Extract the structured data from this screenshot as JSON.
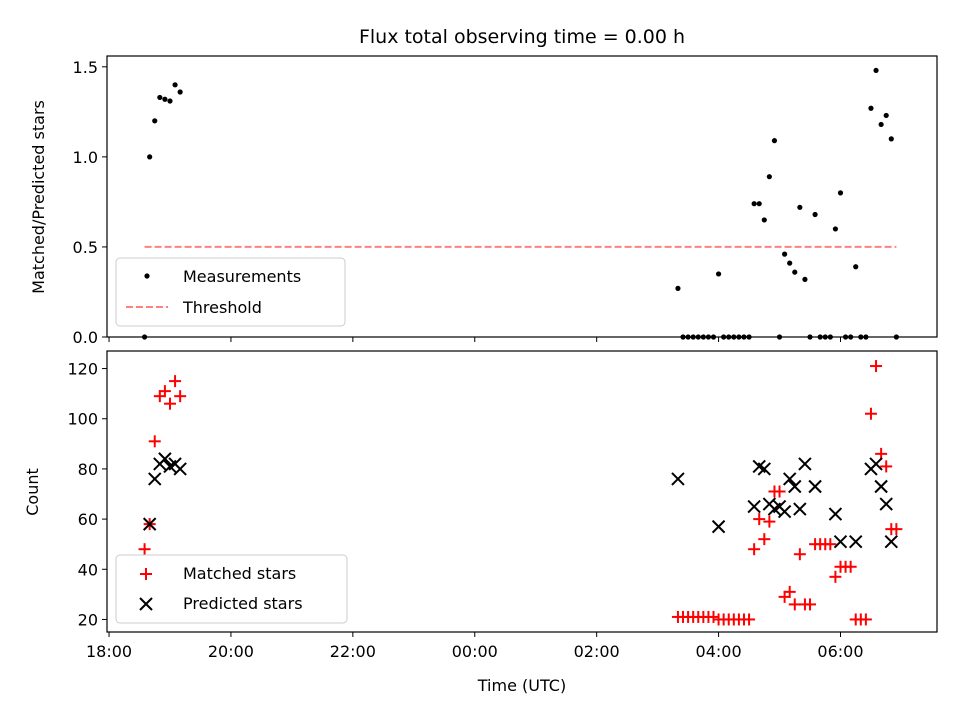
{
  "figure": {
    "title": "Flux total observing time = 0.00 h",
    "xlabel": "Time (UTC)",
    "x_ticks": [
      "18:00",
      "20:00",
      "22:00",
      "00:00",
      "02:00",
      "04:00",
      "06:00"
    ]
  },
  "chart_data": [
    {
      "type": "scatter",
      "ylabel": "Matched/Predicted stars",
      "xlim": [
        "2023-01-01T17:58:00",
        "2023-01-02T07:35:00"
      ],
      "ylim": [
        0,
        1.56
      ],
      "y_ticks": [
        "0.0",
        "0.5",
        "1.0",
        "1.5"
      ],
      "legend": {
        "placement": "lower-left"
      },
      "series": [
        {
          "name": "Measurements",
          "marker": "dot",
          "color": "#000000",
          "points": [
            [
              "2023-01-01T18:35:00",
              0.0
            ],
            [
              "2023-01-01T18:40:00",
              1.0
            ],
            [
              "2023-01-01T18:45:00",
              1.2
            ],
            [
              "2023-01-01T18:50:00",
              1.33
            ],
            [
              "2023-01-01T18:55:00",
              1.32
            ],
            [
              "2023-01-01T19:00:00",
              1.31
            ],
            [
              "2023-01-01T19:05:00",
              1.4
            ],
            [
              "2023-01-01T19:10:00",
              1.36
            ],
            [
              "2023-01-02T03:20:00",
              0.27
            ],
            [
              "2023-01-02T03:25:00",
              0.0
            ],
            [
              "2023-01-02T03:30:00",
              0.0
            ],
            [
              "2023-01-02T03:35:00",
              0.0
            ],
            [
              "2023-01-02T03:40:00",
              0.0
            ],
            [
              "2023-01-02T03:45:00",
              0.0
            ],
            [
              "2023-01-02T03:50:00",
              0.0
            ],
            [
              "2023-01-02T03:55:00",
              0.0
            ],
            [
              "2023-01-02T04:00:00",
              0.35
            ],
            [
              "2023-01-02T04:05:00",
              0.0
            ],
            [
              "2023-01-02T04:10:00",
              0.0
            ],
            [
              "2023-01-02T04:15:00",
              0.0
            ],
            [
              "2023-01-02T04:20:00",
              0.0
            ],
            [
              "2023-01-02T04:25:00",
              0.0
            ],
            [
              "2023-01-02T04:30:00",
              0.0
            ],
            [
              "2023-01-02T04:35:00",
              0.74
            ],
            [
              "2023-01-02T04:40:00",
              0.74
            ],
            [
              "2023-01-02T04:45:00",
              0.65
            ],
            [
              "2023-01-02T04:50:00",
              0.89
            ],
            [
              "2023-01-02T04:55:00",
              1.09
            ],
            [
              "2023-01-02T05:00:00",
              0.0
            ],
            [
              "2023-01-02T05:05:00",
              0.46
            ],
            [
              "2023-01-02T05:10:00",
              0.41
            ],
            [
              "2023-01-02T05:15:00",
              0.36
            ],
            [
              "2023-01-02T05:20:00",
              0.72
            ],
            [
              "2023-01-02T05:25:00",
              0.32
            ],
            [
              "2023-01-02T05:30:00",
              0.0
            ],
            [
              "2023-01-02T05:35:00",
              0.68
            ],
            [
              "2023-01-02T05:40:00",
              0.0
            ],
            [
              "2023-01-02T05:45:00",
              0.0
            ],
            [
              "2023-01-02T05:50:00",
              0.0
            ],
            [
              "2023-01-02T05:55:00",
              0.6
            ],
            [
              "2023-01-02T06:00:00",
              0.8
            ],
            [
              "2023-01-02T06:05:00",
              0.0
            ],
            [
              "2023-01-02T06:10:00",
              0.0
            ],
            [
              "2023-01-02T06:15:00",
              0.39
            ],
            [
              "2023-01-02T06:20:00",
              0.0
            ],
            [
              "2023-01-02T06:25:00",
              0.0
            ],
            [
              "2023-01-02T06:30:00",
              1.27
            ],
            [
              "2023-01-02T06:35:00",
              1.48
            ],
            [
              "2023-01-02T06:40:00",
              1.18
            ],
            [
              "2023-01-02T06:45:00",
              1.23
            ],
            [
              "2023-01-02T06:50:00",
              1.1
            ],
            [
              "2023-01-02T06:55:00",
              0.0
            ]
          ]
        },
        {
          "name": "Threshold",
          "marker": "dashed-line",
          "color": "#ff8080",
          "points": [
            [
              "2023-01-01T18:35:00",
              0.5
            ],
            [
              "2023-01-02T06:55:00",
              0.5
            ]
          ]
        }
      ]
    },
    {
      "type": "scatter",
      "ylabel": "Count",
      "xlim": [
        "2023-01-01T17:58:00",
        "2023-01-02T07:35:00"
      ],
      "ylim": [
        15,
        127
      ],
      "y_ticks": [
        "20",
        "40",
        "60",
        "80",
        "100",
        "120"
      ],
      "legend": {
        "placement": "lower-left"
      },
      "series": [
        {
          "name": "Matched stars",
          "marker": "plus",
          "color": "#ff0000",
          "points": [
            [
              "2023-01-01T18:35:00",
              48
            ],
            [
              "2023-01-01T18:40:00",
              58
            ],
            [
              "2023-01-01T18:45:00",
              91
            ],
            [
              "2023-01-01T18:50:00",
              109
            ],
            [
              "2023-01-01T18:55:00",
              111
            ],
            [
              "2023-01-01T19:00:00",
              106
            ],
            [
              "2023-01-01T19:05:00",
              115
            ],
            [
              "2023-01-01T19:10:00",
              109
            ],
            [
              "2023-01-02T03:20:00",
              21
            ],
            [
              "2023-01-02T03:25:00",
              21
            ],
            [
              "2023-01-02T03:30:00",
              21
            ],
            [
              "2023-01-02T03:35:00",
              21
            ],
            [
              "2023-01-02T03:40:00",
              21
            ],
            [
              "2023-01-02T03:45:00",
              21
            ],
            [
              "2023-01-02T03:50:00",
              21
            ],
            [
              "2023-01-02T03:55:00",
              21
            ],
            [
              "2023-01-02T04:00:00",
              20
            ],
            [
              "2023-01-02T04:05:00",
              20
            ],
            [
              "2023-01-02T04:10:00",
              20
            ],
            [
              "2023-01-02T04:15:00",
              20
            ],
            [
              "2023-01-02T04:20:00",
              20
            ],
            [
              "2023-01-02T04:25:00",
              20
            ],
            [
              "2023-01-02T04:30:00",
              20
            ],
            [
              "2023-01-02T04:35:00",
              48
            ],
            [
              "2023-01-02T04:40:00",
              60
            ],
            [
              "2023-01-02T04:45:00",
              52
            ],
            [
              "2023-01-02T04:50:00",
              59
            ],
            [
              "2023-01-02T04:55:00",
              71
            ],
            [
              "2023-01-02T05:00:00",
              71
            ],
            [
              "2023-01-02T05:05:00",
              29
            ],
            [
              "2023-01-02T05:10:00",
              31
            ],
            [
              "2023-01-02T05:15:00",
              26
            ],
            [
              "2023-01-02T05:20:00",
              46
            ],
            [
              "2023-01-02T05:25:00",
              26
            ],
            [
              "2023-01-02T05:30:00",
              26
            ],
            [
              "2023-01-02T05:35:00",
              50
            ],
            [
              "2023-01-02T05:40:00",
              50
            ],
            [
              "2023-01-02T05:45:00",
              50
            ],
            [
              "2023-01-02T05:50:00",
              50
            ],
            [
              "2023-01-02T05:55:00",
              37
            ],
            [
              "2023-01-02T06:00:00",
              41
            ],
            [
              "2023-01-02T06:05:00",
              41
            ],
            [
              "2023-01-02T06:10:00",
              41
            ],
            [
              "2023-01-02T06:15:00",
              20
            ],
            [
              "2023-01-02T06:20:00",
              20
            ],
            [
              "2023-01-02T06:25:00",
              20
            ],
            [
              "2023-01-02T06:30:00",
              102
            ],
            [
              "2023-01-02T06:35:00",
              121
            ],
            [
              "2023-01-02T06:40:00",
              86
            ],
            [
              "2023-01-02T06:45:00",
              81
            ],
            [
              "2023-01-02T06:50:00",
              56
            ],
            [
              "2023-01-02T06:55:00",
              56
            ]
          ]
        },
        {
          "name": "Predicted stars",
          "marker": "x",
          "color": "#000000",
          "points": [
            [
              "2023-01-01T18:40:00",
              58
            ],
            [
              "2023-01-01T18:45:00",
              76
            ],
            [
              "2023-01-01T18:50:00",
              82
            ],
            [
              "2023-01-01T18:55:00",
              84
            ],
            [
              "2023-01-01T19:00:00",
              81
            ],
            [
              "2023-01-01T19:05:00",
              82
            ],
            [
              "2023-01-01T19:10:00",
              80
            ],
            [
              "2023-01-02T03:20:00",
              76
            ],
            [
              "2023-01-02T04:00:00",
              57
            ],
            [
              "2023-01-02T04:35:00",
              65
            ],
            [
              "2023-01-02T04:40:00",
              81
            ],
            [
              "2023-01-02T04:45:00",
              80
            ],
            [
              "2023-01-02T04:50:00",
              66
            ],
            [
              "2023-01-02T04:55:00",
              64
            ],
            [
              "2023-01-02T05:00:00",
              65
            ],
            [
              "2023-01-02T05:05:00",
              63
            ],
            [
              "2023-01-02T05:10:00",
              76
            ],
            [
              "2023-01-02T05:15:00",
              73
            ],
            [
              "2023-01-02T05:20:00",
              64
            ],
            [
              "2023-01-02T05:25:00",
              82
            ],
            [
              "2023-01-02T05:35:00",
              73
            ],
            [
              "2023-01-02T05:55:00",
              62
            ],
            [
              "2023-01-02T06:00:00",
              51
            ],
            [
              "2023-01-02T06:15:00",
              51
            ],
            [
              "2023-01-02T06:30:00",
              80
            ],
            [
              "2023-01-02T06:35:00",
              82
            ],
            [
              "2023-01-02T06:40:00",
              73
            ],
            [
              "2023-01-02T06:45:00",
              66
            ],
            [
              "2023-01-02T06:50:00",
              51
            ]
          ]
        }
      ]
    }
  ]
}
